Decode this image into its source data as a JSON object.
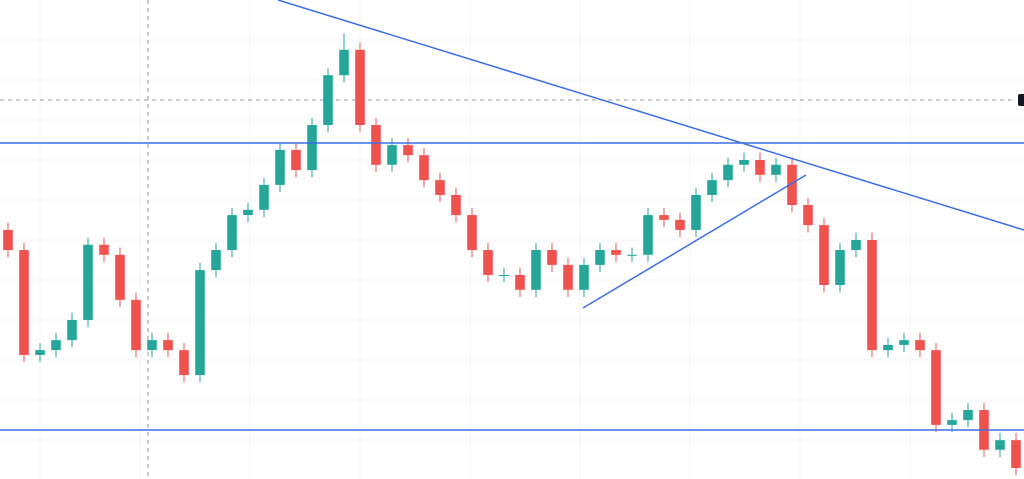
{
  "chart_data": {
    "type": "candlestick",
    "ylim": [
      0,
      100
    ],
    "up_color": "#26a69a",
    "down_color": "#ef5350",
    "open": [
      52,
      47.8,
      25.9,
      26.9,
      29.0,
      33.2,
      48.9,
      46.8,
      37.4,
      26.9,
      29.0,
      26.9,
      21.7,
      43.6,
      47.8,
      55.1,
      56.2,
      61.4,
      68.7,
      64.5,
      73.9,
      84.3,
      89.6,
      73.9,
      65.6,
      69.7,
      67.6,
      62.4,
      59.3,
      55.1,
      47.8,
      42.6,
      42.6,
      39.5,
      47.8,
      44.7,
      39.5,
      44.7,
      47.8,
      46.8,
      46.8,
      55.1,
      54.1,
      52.0,
      59.3,
      62.4,
      65.6,
      66.6,
      63.5,
      65.6,
      57.2,
      53.0,
      40.5,
      47.8,
      49.9,
      26.9,
      28.0,
      29.0,
      26.9,
      11.3,
      12.3,
      14.4,
      6.1,
      8.1
    ],
    "high": [
      53.5,
      49.3,
      28.4,
      30.5,
      34.7,
      50.4,
      50.4,
      48.3,
      38.9,
      30.5,
      30.5,
      28.4,
      45.1,
      49.3,
      56.6,
      57.7,
      62.9,
      70.2,
      70.2,
      75.4,
      85.8,
      93.0,
      91.1,
      75.4,
      71.2,
      71.2,
      69.1,
      63.9,
      60.8,
      56.6,
      49.3,
      44.1,
      44.1,
      49.3,
      49.3,
      46.2,
      46.2,
      49.3,
      49.3,
      48.3,
      56.6,
      56.6,
      55.6,
      60.8,
      63.9,
      67.1,
      68.1,
      68.1,
      67.1,
      67.1,
      58.7,
      54.5,
      49.3,
      51.4,
      51.4,
      29.5,
      30.5,
      30.5,
      28.4,
      13.8,
      15.9,
      15.9,
      9.6,
      9.6
    ],
    "low": [
      46.3,
      24.4,
      24.4,
      25.4,
      27.5,
      31.7,
      45.3,
      35.9,
      25.4,
      25.4,
      25.4,
      20.2,
      20.2,
      42.1,
      46.3,
      53.6,
      54.7,
      59.9,
      63.0,
      63.0,
      72.4,
      82.8,
      72.4,
      64.1,
      64.1,
      66.1,
      60.9,
      57.8,
      53.6,
      46.3,
      41.1,
      41.1,
      38.0,
      38.0,
      43.2,
      38.0,
      38.0,
      43.2,
      45.3,
      45.3,
      45.3,
      52.6,
      50.5,
      50.5,
      57.8,
      60.9,
      64.1,
      62.0,
      62.0,
      55.7,
      51.5,
      39.0,
      39.0,
      46.3,
      25.4,
      25.4,
      26.5,
      25.4,
      9.8,
      9.8,
      10.8,
      4.6,
      4.6,
      0.8
    ],
    "close": [
      47.8,
      25.9,
      26.9,
      29.0,
      33.2,
      48.9,
      46.8,
      37.4,
      26.9,
      29.0,
      26.9,
      21.7,
      43.6,
      47.8,
      55.1,
      56.2,
      61.4,
      68.7,
      64.5,
      73.9,
      84.3,
      89.6,
      73.9,
      65.6,
      69.7,
      67.6,
      62.4,
      59.3,
      55.1,
      47.8,
      42.6,
      42.6,
      39.5,
      47.8,
      44.7,
      39.5,
      44.7,
      47.8,
      46.8,
      46.8,
      55.1,
      54.1,
      52.0,
      59.3,
      62.4,
      65.6,
      66.6,
      63.5,
      65.6,
      57.2,
      53.0,
      40.5,
      47.8,
      49.9,
      26.9,
      28.0,
      29.0,
      26.9,
      11.3,
      12.3,
      14.4,
      6.1,
      8.1,
      2.3
    ]
  }
}
